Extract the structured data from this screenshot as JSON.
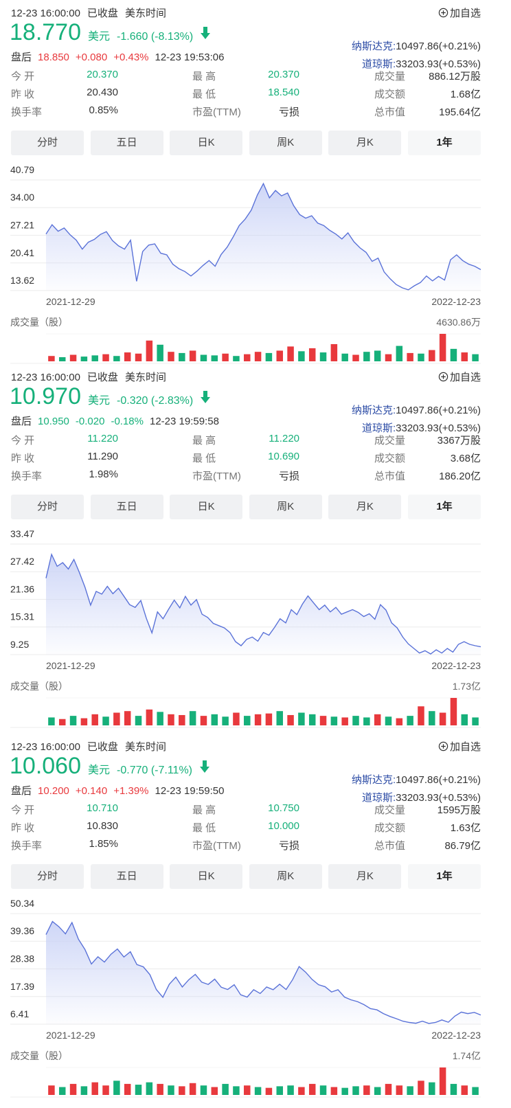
{
  "stat_labels": [
    "今 开",
    "最 高",
    "成交量",
    "昨 收",
    "最 低",
    "成交额",
    "换手率",
    "市盈(TTM)",
    "总市值"
  ],
  "tabs": [
    "分时",
    "五日",
    "日K",
    "周K",
    "月K",
    "1年"
  ],
  "status": "已收盘",
  "timezone": "美东时间",
  "watch": "加自选",
  "currency": "美元",
  "after_label": "盘后",
  "index_names": [
    "纳斯达克:",
    "道琼斯:"
  ],
  "index_values": [
    "10497.86(+0.21%)",
    "33203.93(+0.53%)"
  ],
  "panels": [
    {
      "time": "12-23 16:00:00",
      "price": "18.770",
      "change": "-1.660 (-8.13%)",
      "after_price": "18.850",
      "after_change": "+0.080",
      "after_pct": "+0.43%",
      "after_time": "12-23 19:53:06",
      "after_color": "#e8393d",
      "stats": [
        "20.370",
        "20.370",
        "886.12万股",
        "20.430",
        "18.540",
        "1.68亿",
        "0.85%",
        "亏损",
        "195.64亿"
      ]
    },
    {
      "time": "12-23 16:00:00",
      "price": "10.970",
      "change": "-0.320 (-2.83%)",
      "after_price": "10.950",
      "after_change": "-0.020",
      "after_pct": "-0.18%",
      "after_time": "12-23 19:59:58",
      "after_color": "#16b07a",
      "stats": [
        "11.220",
        "11.220",
        "3367万股",
        "11.290",
        "10.690",
        "3.68亿",
        "1.98%",
        "亏损",
        "186.20亿"
      ]
    },
    {
      "time": "12-23 16:00:00",
      "price": "10.060",
      "change": "-0.770 (-7.11%)",
      "after_price": "10.200",
      "after_change": "+0.140",
      "after_pct": "+1.39%",
      "after_time": "12-23 19:59:50",
      "after_color": "#e8393d",
      "stats": [
        "10.710",
        "10.750",
        "1595万股",
        "10.830",
        "10.000",
        "1.63亿",
        "1.85%",
        "亏损",
        "86.79亿"
      ]
    }
  ],
  "chart_data": [
    {
      "type": "line",
      "line_color": "#5a72d8",
      "fill_color": "#c9d2f6",
      "categories": [
        "2021-12-29",
        null,
        null,
        null,
        null,
        null,
        null,
        null,
        null,
        null,
        null,
        null,
        null,
        null,
        null,
        null,
        null,
        null,
        null,
        null,
        null,
        null,
        null,
        null,
        null,
        null,
        null,
        null,
        null,
        null,
        null,
        null,
        null,
        null,
        null,
        null,
        null,
        null,
        null,
        null,
        null,
        null,
        null,
        null,
        null,
        null,
        null,
        null,
        null,
        null,
        null,
        null,
        null,
        null,
        null,
        null,
        null,
        null,
        null,
        null,
        null,
        null,
        null,
        null,
        null,
        null,
        null,
        null,
        null,
        null,
        null,
        null,
        "2022-12-23"
      ],
      "values": [
        27.5,
        29.8,
        28.2,
        29.0,
        27.3,
        26.0,
        23.8,
        25.5,
        26.2,
        27.4,
        28.1,
        25.9,
        24.6,
        23.8,
        26.0,
        15.9,
        23.2,
        24.8,
        25.1,
        22.8,
        22.4,
        20.1,
        19.0,
        18.3,
        17.2,
        18.4,
        19.8,
        21.0,
        19.6,
        22.5,
        24.3,
        26.8,
        29.6,
        31.2,
        33.4,
        37.1,
        39.9,
        36.4,
        38.2,
        36.9,
        37.6,
        34.5,
        32.3,
        31.4,
        32.0,
        30.2,
        29.6,
        28.4,
        27.5,
        26.3,
        27.8,
        25.6,
        24.1,
        23.0,
        20.8,
        21.6,
        18.2,
        16.5,
        15.1,
        14.3,
        13.8,
        14.8,
        15.6,
        17.2,
        16.0,
        17.1,
        16.2,
        21.2,
        22.4,
        21.0,
        20.1,
        19.6,
        18.77
      ],
      "ylim": [
        13.62,
        40.79
      ],
      "yticks": [
        40.79,
        {
          "value": 34,
          "label": "34.00"
        },
        27.21,
        20.41,
        13.62
      ],
      "grid": true
    },
    {
      "type": "bar",
      "title": "成交量（股）",
      "up_color": "#e8393d",
      "down_color": "#16b07a",
      "ylim": [
        0,
        4630.86
      ],
      "yticks": [
        {
          "value": 4630.86,
          "label": "4630.86万"
        }
      ],
      "values": [
        900,
        700,
        1100,
        800,
        1000,
        1200,
        900,
        1500,
        1300,
        3500,
        2800,
        1600,
        1400,
        1800,
        1100,
        1000,
        1300,
        900,
        1200,
        1600,
        1400,
        1800,
        2500,
        1700,
        2200,
        1500,
        2900,
        1300,
        1100,
        1600,
        1800,
        1200,
        2600,
        1400,
        1300,
        1900,
        4630.86,
        2100,
        1500,
        1200
      ],
      "up": [
        true,
        false,
        true,
        false,
        false,
        true,
        false,
        true,
        true,
        true,
        false,
        true,
        false,
        true,
        false,
        false,
        true,
        false,
        true,
        true,
        false,
        true,
        true,
        false,
        true,
        false,
        true,
        false,
        true,
        false,
        false,
        true,
        false,
        true,
        false,
        true,
        true,
        false,
        true,
        false
      ]
    },
    {
      "type": "line",
      "line_color": "#5a72d8",
      "fill_color": "#c9d2f6",
      "categories": [
        "2021-12-29",
        null,
        null,
        null,
        null,
        null,
        null,
        null,
        null,
        null,
        null,
        null,
        null,
        null,
        null,
        null,
        null,
        null,
        null,
        null,
        null,
        null,
        null,
        null,
        null,
        null,
        null,
        null,
        null,
        null,
        null,
        null,
        null,
        null,
        null,
        null,
        null,
        null,
        null,
        null,
        null,
        null,
        null,
        null,
        null,
        null,
        null,
        null,
        null,
        null,
        null,
        null,
        null,
        null,
        null,
        null,
        null,
        null,
        null,
        null,
        null,
        null,
        null,
        null,
        null,
        null,
        null,
        null,
        null,
        null,
        null,
        null,
        null,
        null,
        null,
        null,
        null,
        null,
        "2022-12-23"
      ],
      "values": [
        26.0,
        31.2,
        28.6,
        29.4,
        28.0,
        30.1,
        27.2,
        24.0,
        20.1,
        23.1,
        22.5,
        24.2,
        22.6,
        23.8,
        22.0,
        20.2,
        19.6,
        21.1,
        17.2,
        14.0,
        18.6,
        17.1,
        19.2,
        21.2,
        19.5,
        22.0,
        20.1,
        21.3,
        18.1,
        17.4,
        16.1,
        15.6,
        15.1,
        14.1,
        12.1,
        11.2,
        12.6,
        13.1,
        12.2,
        14.1,
        13.5,
        15.2,
        17.1,
        16.2,
        19.1,
        18.0,
        20.3,
        22.1,
        20.6,
        19.1,
        20.1,
        18.6,
        19.6,
        18.1,
        18.6,
        19.1,
        18.5,
        17.6,
        18.2,
        17.0,
        20.2,
        19.0,
        16.2,
        15.1,
        13.1,
        11.6,
        10.6,
        9.6,
        10.1,
        9.4,
        10.3,
        9.6,
        10.6,
        9.8,
        11.5,
        12.1,
        11.5,
        11.2,
        10.97
      ],
      "ylim": [
        9.25,
        33.47
      ],
      "yticks": [
        33.47,
        27.42,
        21.36,
        15.31,
        9.25
      ],
      "grid": true
    },
    {
      "type": "bar",
      "title": "成交量（股）",
      "up_color": "#e8393d",
      "down_color": "#16b07a",
      "ylim": [
        0,
        1.73
      ],
      "yticks": [
        {
          "value": 1.73,
          "label": "1.73亿"
        }
      ],
      "values": [
        0.5,
        0.4,
        0.6,
        0.45,
        0.7,
        0.55,
        0.8,
        0.9,
        0.6,
        1.0,
        0.85,
        0.7,
        0.65,
        0.9,
        0.6,
        0.7,
        0.55,
        0.8,
        0.6,
        0.7,
        0.75,
        0.9,
        0.65,
        0.8,
        0.7,
        0.6,
        0.55,
        0.5,
        0.6,
        0.5,
        0.7,
        0.55,
        0.45,
        0.6,
        1.2,
        0.9,
        0.8,
        1.73,
        0.7,
        0.5
      ],
      "up": [
        false,
        true,
        false,
        true,
        true,
        false,
        true,
        true,
        false,
        true,
        false,
        true,
        true,
        false,
        true,
        false,
        false,
        true,
        false,
        true,
        true,
        false,
        true,
        false,
        false,
        true,
        false,
        true,
        false,
        false,
        true,
        false,
        true,
        false,
        true,
        false,
        true,
        true,
        false,
        false
      ]
    },
    {
      "type": "line",
      "line_color": "#5a72d8",
      "fill_color": "#c9d2f6",
      "categories": [
        "2021-12-29",
        null,
        null,
        null,
        null,
        null,
        null,
        null,
        null,
        null,
        null,
        null,
        null,
        null,
        null,
        null,
        null,
        null,
        null,
        null,
        null,
        null,
        null,
        null,
        null,
        null,
        null,
        null,
        null,
        null,
        null,
        null,
        null,
        null,
        null,
        null,
        null,
        null,
        null,
        null,
        null,
        null,
        null,
        null,
        null,
        null,
        null,
        null,
        null,
        null,
        null,
        null,
        null,
        null,
        null,
        null,
        null,
        null,
        null,
        null,
        null,
        null,
        null,
        null,
        null,
        null,
        null,
        "2022-12-23"
      ],
      "values": [
        42.0,
        47.2,
        45.1,
        42.3,
        46.8,
        40.2,
        36.1,
        30.3,
        33.2,
        31.1,
        34.2,
        36.3,
        33.1,
        35.2,
        30.1,
        29.2,
        26.1,
        20.2,
        17.1,
        22.3,
        25.1,
        21.2,
        24.1,
        26.2,
        23.1,
        22.2,
        24.3,
        21.1,
        20.2,
        22.1,
        18.1,
        17.2,
        20.1,
        18.6,
        21.2,
        20.1,
        22.3,
        20.2,
        24.1,
        29.3,
        27.1,
        24.2,
        22.1,
        21.3,
        19.2,
        20.1,
        17.2,
        16.1,
        15.4,
        14.2,
        12.6,
        12.1,
        10.6,
        9.5,
        8.6,
        7.6,
        7.1,
        6.8,
        7.6,
        6.7,
        7.1,
        8.1,
        7.2,
        9.6,
        11.2,
        10.6,
        11.1,
        10.06
      ],
      "ylim": [
        6.41,
        50.34
      ],
      "yticks": [
        50.34,
        39.36,
        28.38,
        17.39,
        6.41
      ],
      "grid": true
    },
    {
      "type": "bar",
      "title": "成交量（股）",
      "up_color": "#e8393d",
      "down_color": "#16b07a",
      "ylim": [
        0,
        1.74
      ],
      "yticks": [
        {
          "value": 1.74,
          "label": "1.74亿"
        }
      ],
      "values": [
        0.6,
        0.5,
        0.7,
        0.55,
        0.8,
        0.6,
        0.9,
        0.7,
        0.65,
        0.8,
        0.7,
        0.6,
        0.55,
        0.75,
        0.6,
        0.5,
        0.7,
        0.55,
        0.6,
        0.5,
        0.45,
        0.55,
        0.6,
        0.5,
        0.7,
        0.6,
        0.5,
        0.45,
        0.55,
        0.6,
        0.5,
        0.7,
        0.6,
        0.55,
        0.9,
        0.8,
        1.74,
        0.7,
        0.6,
        0.5
      ],
      "up": [
        true,
        false,
        true,
        false,
        true,
        true,
        false,
        true,
        false,
        false,
        true,
        false,
        true,
        true,
        false,
        true,
        false,
        false,
        true,
        false,
        true,
        false,
        false,
        true,
        true,
        false,
        true,
        false,
        false,
        true,
        false,
        true,
        true,
        false,
        true,
        false,
        true,
        false,
        true,
        false
      ]
    }
  ]
}
